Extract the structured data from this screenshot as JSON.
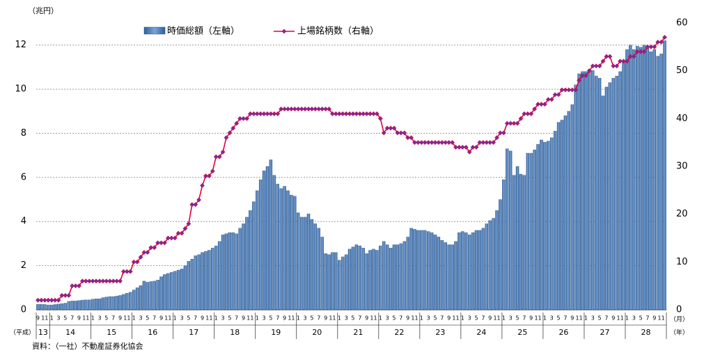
{
  "chart_data": {
    "type": "bar-line",
    "y_unit": "（兆円）",
    "x_prefix": "（平成）",
    "x_unit_month": "（月）",
    "x_unit_year": "（年）",
    "source": "資料：（一社）不動産証券化協会",
    "categories": [
      "9",
      null,
      "11",
      null,
      "1",
      null,
      "3",
      null,
      "5",
      null,
      "7",
      null,
      "9",
      null,
      "11",
      null,
      "1",
      null,
      "3",
      null,
      "5",
      null,
      "7",
      null,
      "9",
      null,
      "11",
      null,
      "1",
      null,
      "3",
      null,
      "5",
      null,
      "7",
      null,
      "9",
      null,
      "11",
      null,
      "1",
      null,
      "3",
      null,
      "5",
      null,
      "7",
      null,
      "9",
      null,
      "11",
      null,
      "1",
      null,
      "3",
      null,
      "5",
      null,
      "7",
      null,
      "9",
      null,
      "11",
      null,
      "1",
      null,
      "3",
      null,
      "5",
      null,
      "7",
      null,
      "9",
      null,
      "11",
      null,
      "1",
      null,
      "3",
      null,
      "5",
      null,
      "7",
      null,
      "9",
      null,
      "11",
      null,
      "1",
      null,
      "3",
      null,
      "5",
      null,
      "7",
      null,
      "9",
      null,
      "11",
      null,
      "1",
      null,
      "3",
      null,
      "5",
      null,
      "7",
      null,
      "9",
      null,
      "11",
      null,
      "1",
      null,
      "3",
      null,
      "5",
      null,
      "7",
      null,
      "9",
      null,
      "11",
      null,
      "1",
      null,
      "3",
      null,
      "5",
      null,
      "7",
      null,
      "9",
      null,
      "11",
      null,
      "1",
      null,
      "3",
      null,
      "5",
      null,
      "7",
      null,
      "9",
      null,
      "11",
      null,
      "1",
      null,
      "3",
      null,
      "5",
      null,
      "7",
      null,
      "9",
      null,
      "11",
      null,
      "1",
      null,
      "3",
      null,
      "5",
      null,
      "7",
      null,
      "9",
      null,
      "11",
      null,
      "1",
      null,
      "3",
      null,
      "5",
      null,
      "7",
      null,
      "9",
      null,
      "11",
      null
    ],
    "years": [
      "13",
      "14",
      "15",
      "16",
      "17",
      "18",
      "19",
      "20",
      "21",
      "22",
      "23",
      "24",
      "25",
      "26",
      "27",
      "28"
    ],
    "series": [
      {
        "name": "時価総額（左軸）",
        "color": "#4f81bd",
        "kind": "bar",
        "axis": "y",
        "values": [
          0.25,
          0.25,
          0.24,
          0.22,
          0.22,
          0.24,
          0.26,
          0.28,
          0.3,
          0.38,
          0.4,
          0.4,
          0.42,
          0.44,
          0.45,
          0.45,
          0.48,
          0.5,
          0.5,
          0.55,
          0.58,
          0.6,
          0.6,
          0.62,
          0.65,
          0.7,
          0.75,
          0.8,
          0.9,
          1.0,
          1.1,
          1.3,
          1.25,
          1.28,
          1.3,
          1.35,
          1.5,
          1.6,
          1.65,
          1.7,
          1.75,
          1.8,
          1.85,
          2.0,
          2.2,
          2.3,
          2.45,
          2.5,
          2.6,
          2.65,
          2.7,
          2.8,
          2.9,
          3.1,
          3.4,
          3.45,
          3.5,
          3.5,
          3.45,
          3.7,
          3.9,
          4.2,
          4.5,
          4.9,
          5.4,
          5.9,
          6.3,
          6.5,
          6.8,
          6.1,
          5.7,
          5.5,
          5.6,
          5.4,
          5.2,
          5.15,
          4.4,
          4.2,
          4.2,
          4.35,
          4.1,
          3.9,
          3.7,
          3.3,
          2.55,
          2.5,
          2.6,
          2.6,
          2.25,
          2.4,
          2.5,
          2.75,
          2.85,
          2.95,
          2.9,
          2.8,
          2.55,
          2.7,
          2.75,
          2.7,
          2.9,
          3.1,
          2.95,
          2.8,
          2.95,
          2.95,
          3.0,
          3.1,
          3.3,
          3.7,
          3.65,
          3.6,
          3.6,
          3.6,
          3.55,
          3.5,
          3.4,
          3.3,
          3.15,
          3.05,
          2.95,
          2.95,
          3.1,
          3.5,
          3.55,
          3.5,
          3.4,
          3.5,
          3.6,
          3.6,
          3.7,
          3.9,
          4.05,
          4.15,
          4.5,
          5.0,
          5.9,
          7.3,
          7.2,
          6.1,
          6.5,
          6.15,
          6.1,
          7.1,
          7.1,
          7.25,
          7.5,
          7.7,
          7.6,
          7.65,
          7.8,
          8.1,
          8.5,
          8.6,
          8.8,
          9.0,
          9.3,
          10.2,
          10.7,
          10.8,
          10.8,
          10.9,
          10.85,
          10.6,
          10.5,
          9.7,
          10.1,
          10.3,
          10.5,
          10.6,
          10.8,
          11.3,
          11.8,
          12.0,
          11.8,
          11.95,
          11.9,
          12.0,
          11.85,
          11.7,
          11.8,
          11.5,
          11.6,
          12.2
        ]
      },
      {
        "name": "上場銘柄数（右軸）",
        "color": "#e0003c",
        "marker_color": "#7030a0",
        "kind": "line",
        "axis": "y2",
        "values": [
          2,
          2,
          2,
          2,
          2,
          2,
          2,
          3,
          3,
          3,
          5,
          5,
          5,
          6,
          6,
          6,
          6,
          6,
          6,
          6,
          6,
          6,
          6,
          6,
          6,
          8,
          8,
          8,
          10,
          10,
          11,
          12,
          12,
          13,
          13,
          14,
          14,
          14,
          15,
          15,
          15,
          16,
          16,
          17,
          18,
          22,
          22,
          23,
          26,
          28,
          28,
          29,
          32,
          32,
          33,
          36,
          37,
          38,
          39,
          40,
          40,
          40,
          41,
          41,
          41,
          41,
          41,
          41,
          41,
          41,
          41,
          42,
          42,
          42,
          42,
          42,
          42,
          42,
          42,
          42,
          42,
          42,
          42,
          42,
          42,
          42,
          41,
          41,
          41,
          41,
          41,
          41,
          41,
          41,
          41,
          41,
          41,
          41,
          41,
          41,
          40,
          37,
          38,
          38,
          38,
          37,
          37,
          37,
          36,
          36,
          35,
          35,
          35,
          35,
          35,
          35,
          35,
          35,
          35,
          35,
          35,
          35,
          34,
          34,
          34,
          34,
          33,
          34,
          34,
          35,
          35,
          35,
          35,
          35,
          36,
          37,
          37,
          39,
          39,
          39,
          39,
          40,
          41,
          41,
          41,
          42,
          43,
          43,
          43,
          44,
          44,
          45,
          45,
          46,
          46,
          46,
          46,
          46,
          48,
          49,
          49,
          50,
          51,
          51,
          51,
          52,
          53,
          53,
          51,
          51,
          52,
          52,
          52,
          53,
          53,
          54,
          54,
          54,
          55,
          55,
          55,
          56,
          56,
          57
        ]
      }
    ],
    "ylim": [
      0,
      13
    ],
    "yticks": [
      0,
      2,
      4,
      6,
      8,
      10,
      12
    ],
    "y2lim": [
      0,
      60
    ],
    "y2ticks": [
      0,
      10,
      20,
      30,
      40,
      50,
      60
    ],
    "grid": true,
    "legend": "top"
  }
}
